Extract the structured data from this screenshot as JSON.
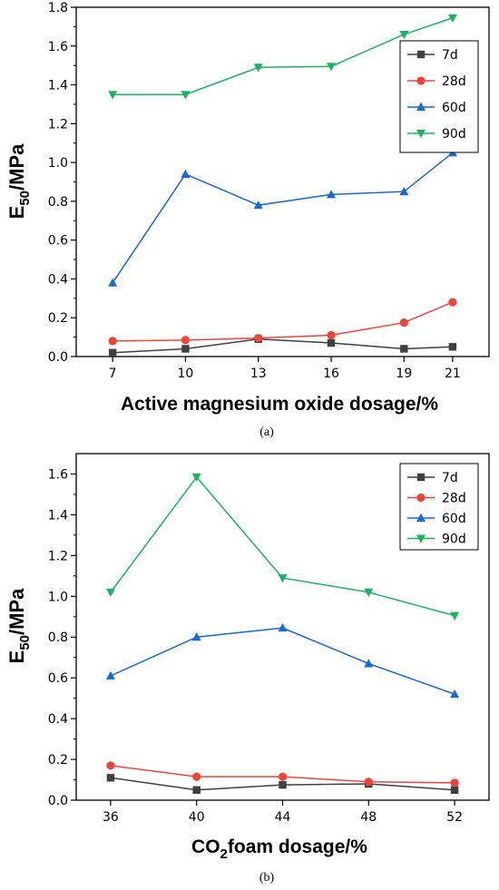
{
  "chart_data": [
    {
      "type": "line",
      "panel_label": "(a)",
      "xlabel": "Active magnesium oxide dosage/%",
      "ylabel_main": "E",
      "ylabel_sub": "50",
      "ylabel_suffix": "/MPa",
      "x": [
        7,
        10,
        13,
        16,
        19,
        21
      ],
      "xticks": [
        "7",
        "10",
        "13",
        "16",
        "19",
        "21"
      ],
      "xlim": [
        5.5,
        22.5
      ],
      "ylim": [
        0,
        1.8
      ],
      "yticks": [
        "0.0",
        "0.2",
        "0.4",
        "0.6",
        "0.8",
        "1.0",
        "1.2",
        "1.4",
        "1.6",
        "1.8"
      ],
      "legend_position": "top-right",
      "grid": false,
      "series": [
        {
          "name": "7d",
          "color": "#404040",
          "marker": "square",
          "values": [
            0.02,
            0.04,
            0.09,
            0.07,
            0.04,
            0.05
          ]
        },
        {
          "name": "28d",
          "color": "#f0443a",
          "marker": "circle",
          "values": [
            0.08,
            0.085,
            0.095,
            0.11,
            0.175,
            0.28
          ]
        },
        {
          "name": "60d",
          "color": "#1769d6",
          "marker": "triangle-up",
          "values": [
            0.38,
            0.94,
            0.78,
            0.835,
            0.85,
            1.05
          ]
        },
        {
          "name": "90d",
          "color": "#1bb35e",
          "marker": "triangle-down",
          "values": [
            1.35,
            1.35,
            1.49,
            1.495,
            1.66,
            1.745
          ]
        }
      ]
    },
    {
      "type": "line",
      "panel_label": "(b)",
      "xlabel_pre": "CO",
      "xlabel_sub": "2",
      "xlabel_post": "foam dosage/%",
      "ylabel_main": "E",
      "ylabel_sub": "50",
      "ylabel_suffix": "/MPa",
      "x": [
        36,
        40,
        44,
        48,
        52
      ],
      "xticks": [
        "36",
        "40",
        "44",
        "48",
        "52"
      ],
      "xlim": [
        34.4,
        53.6
      ],
      "ylim": [
        0,
        1.7
      ],
      "yticks": [
        "0.0",
        "0.2",
        "0.4",
        "0.6",
        "0.8",
        "1.0",
        "1.2",
        "1.4",
        "1.6"
      ],
      "legend_position": "top-right",
      "grid": false,
      "series": [
        {
          "name": "7d",
          "color": "#404040",
          "marker": "square",
          "values": [
            0.11,
            0.05,
            0.075,
            0.08,
            0.05
          ]
        },
        {
          "name": "28d",
          "color": "#f0443a",
          "marker": "circle",
          "values": [
            0.17,
            0.115,
            0.115,
            0.09,
            0.085
          ]
        },
        {
          "name": "60d",
          "color": "#1769d6",
          "marker": "triangle-up",
          "values": [
            0.61,
            0.8,
            0.845,
            0.67,
            0.52
          ]
        },
        {
          "name": "90d",
          "color": "#1bb35e",
          "marker": "triangle-down",
          "values": [
            1.02,
            1.585,
            1.09,
            1.02,
            0.905
          ]
        }
      ]
    }
  ]
}
